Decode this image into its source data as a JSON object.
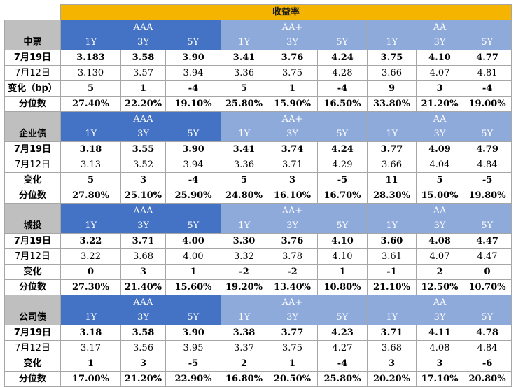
{
  "title": "收益率",
  "ratings": [
    "AAA",
    "AA+",
    "AA"
  ],
  "tenors": [
    "1Y",
    "3Y",
    "5Y"
  ],
  "sections": [
    {
      "name": "中票",
      "rows": [
        {
          "label": "7月19日",
          "bold": true,
          "values": [
            "3.183",
            "3.58",
            "3.90",
            "3.41",
            "3.76",
            "4.24",
            "3.75",
            "4.10",
            "4.77"
          ]
        },
        {
          "label": "7月12日",
          "bold": false,
          "values": [
            "3.130",
            "3.57",
            "3.94",
            "3.36",
            "3.75",
            "4.28",
            "3.66",
            "4.07",
            "4.81"
          ]
        },
        {
          "label": "变化（bp）",
          "bold": true,
          "values": [
            "5",
            "1",
            "-4",
            "5",
            "1",
            "-4",
            "9",
            "3",
            "-4"
          ]
        },
        {
          "label": "分位数",
          "bold": true,
          "values": [
            "27.40%",
            "22.20%",
            "19.10%",
            "25.80%",
            "15.90%",
            "16.50%",
            "33.80%",
            "21.20%",
            "19.00%"
          ]
        }
      ]
    },
    {
      "name": "企业债",
      "rows": [
        {
          "label": "7月19日",
          "bold": true,
          "values": [
            "3.18",
            "3.55",
            "3.90",
            "3.41",
            "3.74",
            "4.24",
            "3.77",
            "4.09",
            "4.79"
          ]
        },
        {
          "label": "7月12日",
          "bold": false,
          "values": [
            "3.13",
            "3.52",
            "3.94",
            "3.36",
            "3.71",
            "4.29",
            "3.66",
            "4.04",
            "4.84"
          ]
        },
        {
          "label": "变化",
          "bold": true,
          "values": [
            "5",
            "3",
            "-4",
            "5",
            "3",
            "-5",
            "11",
            "5",
            "-5"
          ]
        },
        {
          "label": "分位数",
          "bold": true,
          "values": [
            "27.80%",
            "25.10%",
            "25.90%",
            "24.80%",
            "16.10%",
            "16.70%",
            "28.30%",
            "15.00%",
            "19.80%"
          ]
        }
      ]
    },
    {
      "name": "城投",
      "rows": [
        {
          "label": "7月19日",
          "bold": true,
          "values": [
            "3.22",
            "3.71",
            "4.00",
            "3.30",
            "3.76",
            "4.10",
            "3.60",
            "4.08",
            "4.47"
          ]
        },
        {
          "label": "7月12日",
          "bold": false,
          "values": [
            "3.22",
            "3.68",
            "4.00",
            "3.32",
            "3.78",
            "4.10",
            "3.61",
            "4.07",
            "4.47"
          ]
        },
        {
          "label": "变化",
          "bold": true,
          "values": [
            "0",
            "3",
            "1",
            "-2",
            "-2",
            "1",
            "-1",
            "2",
            "0"
          ]
        },
        {
          "label": "分位数",
          "bold": true,
          "values": [
            "27.30%",
            "21.40%",
            "15.60%",
            "19.20%",
            "13.40%",
            "10.80%",
            "21.10%",
            "12.50%",
            "10.70%"
          ]
        }
      ]
    },
    {
      "name": "公司债",
      "rows": [
        {
          "label": "7月19日",
          "bold": true,
          "values": [
            "3.18",
            "3.58",
            "3.90",
            "3.38",
            "3.77",
            "4.23",
            "3.71",
            "4.11",
            "4.78"
          ]
        },
        {
          "label": "7月12日",
          "bold": false,
          "values": [
            "3.17",
            "3.56",
            "3.95",
            "3.37",
            "3.75",
            "4.27",
            "3.68",
            "4.08",
            "4.84"
          ]
        },
        {
          "label": "变化",
          "bold": true,
          "values": [
            "1",
            "3",
            "-5",
            "2",
            "1",
            "-4",
            "3",
            "3",
            "-6"
          ]
        },
        {
          "label": "分位数",
          "bold": true,
          "values": [
            "17.00%",
            "21.20%",
            "22.90%",
            "16.80%",
            "20.50%",
            "25.80%",
            "20.20%",
            "17.10%",
            "20.80%"
          ]
        }
      ]
    }
  ],
  "colors": {
    "title_bg": "#f4b400",
    "aaa_header": "#4472c4",
    "aa_plus_header": "#8eaadb",
    "aa_header": "#8eaadb",
    "category_bg": "#bfbfbf"
  }
}
